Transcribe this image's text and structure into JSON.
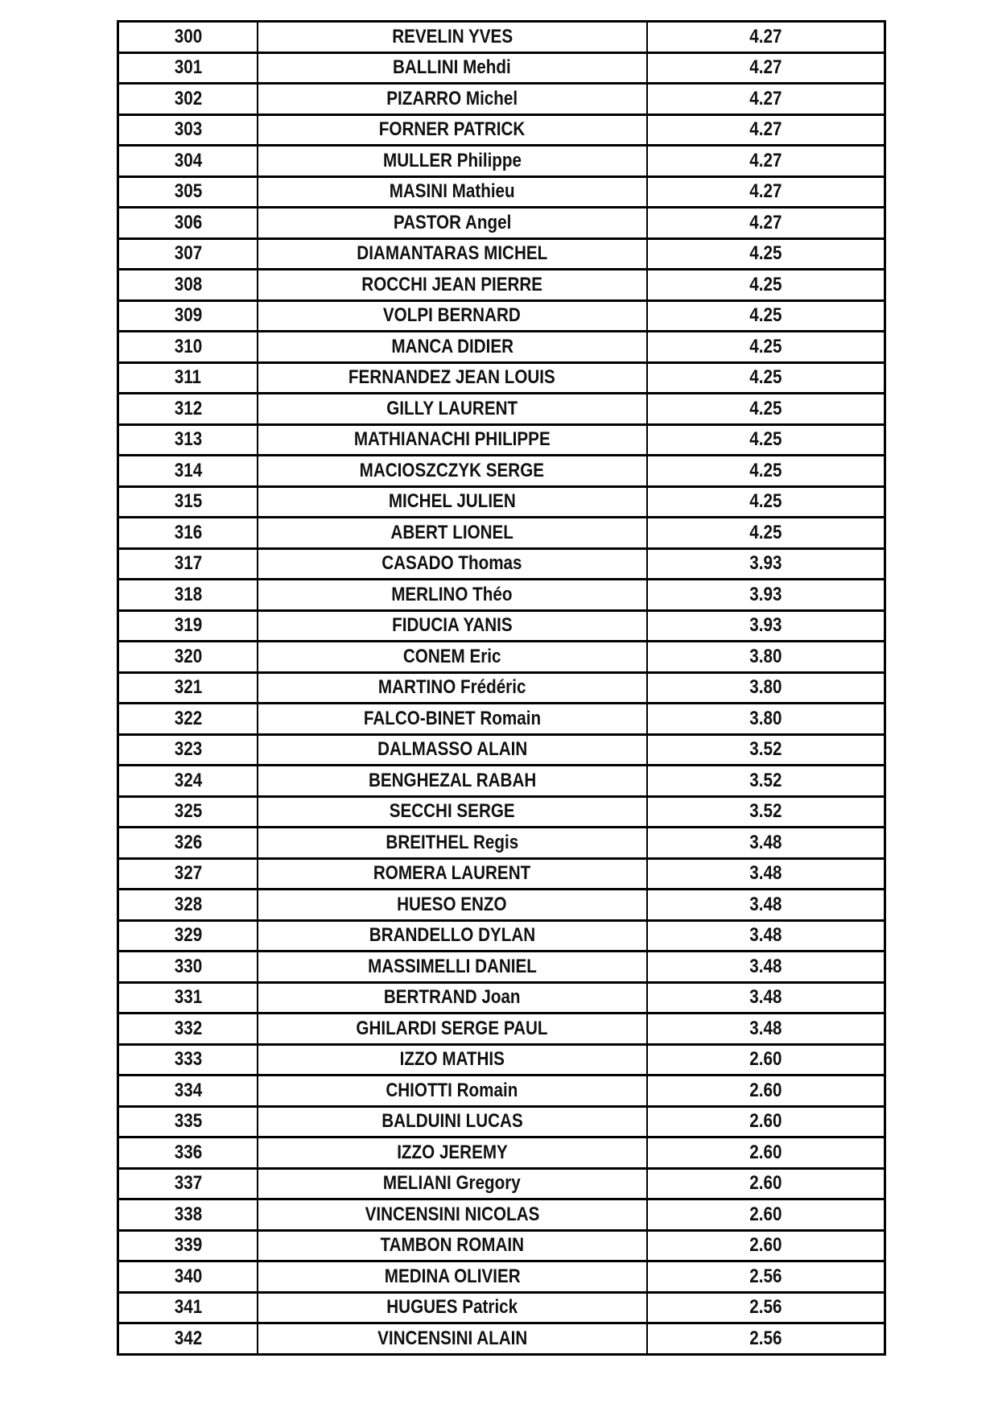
{
  "rows": [
    [
      "300",
      "REVELIN YVES",
      "4.27"
    ],
    [
      "301",
      "BALLINI Mehdi",
      "4.27"
    ],
    [
      "302",
      "PIZARRO Michel",
      "4.27"
    ],
    [
      "303",
      "FORNER PATRICK",
      "4.27"
    ],
    [
      "304",
      "MULLER Philippe",
      "4.27"
    ],
    [
      "305",
      "MASINI Mathieu",
      "4.27"
    ],
    [
      "306",
      "PASTOR Angel",
      "4.27"
    ],
    [
      "307",
      "DIAMANTARAS MICHEL",
      "4.25"
    ],
    [
      "308",
      "ROCCHI JEAN PIERRE",
      "4.25"
    ],
    [
      "309",
      "VOLPI BERNARD",
      "4.25"
    ],
    [
      "310",
      "MANCA DIDIER",
      "4.25"
    ],
    [
      "311",
      "FERNANDEZ JEAN LOUIS",
      "4.25"
    ],
    [
      "312",
      "GILLY LAURENT",
      "4.25"
    ],
    [
      "313",
      "MATHIANACHI PHILIPPE",
      "4.25"
    ],
    [
      "314",
      "MACIOSZCZYK SERGE",
      "4.25"
    ],
    [
      "315",
      "MICHEL JULIEN",
      "4.25"
    ],
    [
      "316",
      "ABERT LIONEL",
      "4.25"
    ],
    [
      "317",
      "CASADO Thomas",
      "3.93"
    ],
    [
      "318",
      "MERLINO Théo",
      "3.93"
    ],
    [
      "319",
      "FIDUCIA YANIS",
      "3.93"
    ],
    [
      "320",
      "CONEM Eric",
      "3.80"
    ],
    [
      "321",
      "MARTINO Frédéric",
      "3.80"
    ],
    [
      "322",
      "FALCO-BINET Romain",
      "3.80"
    ],
    [
      "323",
      "DALMASSO ALAIN",
      "3.52"
    ],
    [
      "324",
      "BENGHEZAL RABAH",
      "3.52"
    ],
    [
      "325",
      "SECCHI SERGE",
      "3.52"
    ],
    [
      "326",
      "BREITHEL Regis",
      "3.48"
    ],
    [
      "327",
      "ROMERA LAURENT",
      "3.48"
    ],
    [
      "328",
      "HUESO ENZO",
      "3.48"
    ],
    [
      "329",
      "BRANDELLO DYLAN",
      "3.48"
    ],
    [
      "330",
      "MASSIMELLI DANIEL",
      "3.48"
    ],
    [
      "331",
      "BERTRAND Joan",
      "3.48"
    ],
    [
      "332",
      "GHILARDI SERGE PAUL",
      "3.48"
    ],
    [
      "333",
      "IZZO MATHIS",
      "2.60"
    ],
    [
      "334",
      "CHIOTTI Romain",
      "2.60"
    ],
    [
      "335",
      "BALDUINI LUCAS",
      "2.60"
    ],
    [
      "336",
      "IZZO JEREMY",
      "2.60"
    ],
    [
      "337",
      "MELIANI Gregory",
      "2.60"
    ],
    [
      "338",
      "VINCENSINI NICOLAS",
      "2.60"
    ],
    [
      "339",
      "TAMBON ROMAIN",
      "2.60"
    ],
    [
      "340",
      "MEDINA OLIVIER",
      "2.56"
    ],
    [
      "341",
      "HUGUES Patrick",
      "2.56"
    ],
    [
      "342",
      "VINCENSINI ALAIN",
      "2.56"
    ]
  ]
}
